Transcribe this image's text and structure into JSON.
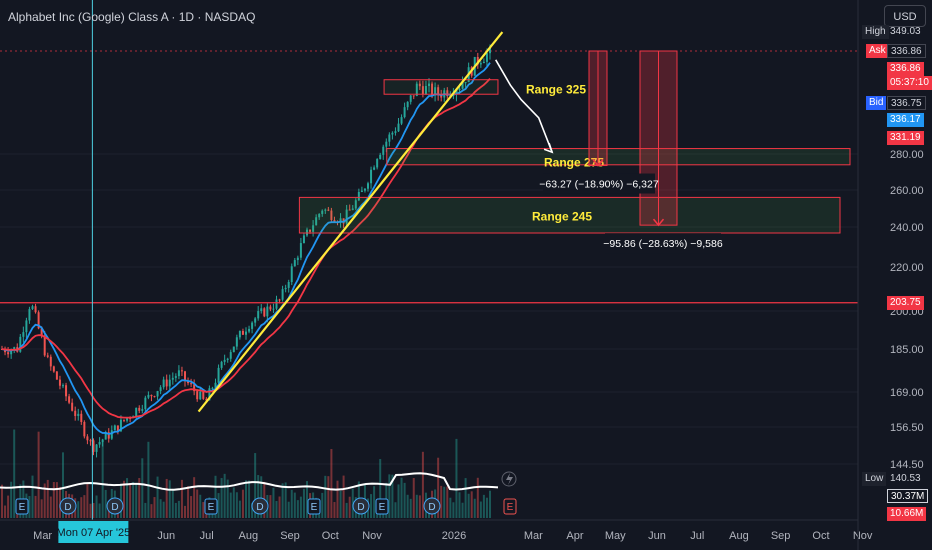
{
  "header": {
    "title": "Alphabet Inc (Google) Class A · 1D · NASDAQ",
    "currency": "USD"
  },
  "chart_data": {
    "type": "candlestick",
    "x_ticks": [
      "Mar",
      "Apr",
      "May",
      "Jun",
      "Jul",
      "Aug",
      "Sep",
      "Oct",
      "Nov",
      "2026",
      "Mar",
      "Apr",
      "May",
      "Jun",
      "Jul",
      "Aug",
      "Sep",
      "Oct",
      "Nov"
    ],
    "x_ticks_hidden": [
      "Apr",
      "May"
    ],
    "y_ticks": [
      280.0,
      260.0,
      240.0,
      220.0,
      200.0,
      185.0,
      169.0,
      156.5,
      144.5
    ],
    "y_tick_labels": [
      "280.00",
      "260.00",
      "240.00",
      "220.00",
      "200.00",
      "185.00",
      "169.00",
      "156.50",
      "144.50"
    ],
    "crosshair_label": "Mon 07 Apr '25",
    "price_path": [
      {
        "date": "2025-02-10",
        "price": 185
      },
      {
        "date": "2025-02-20",
        "price": 204
      },
      {
        "date": "2025-03-05",
        "price": 180
      },
      {
        "date": "2025-03-20",
        "price": 166
      },
      {
        "date": "2025-04-07",
        "price": 150
      },
      {
        "date": "2025-04-22",
        "price": 155
      },
      {
        "date": "2025-05-10",
        "price": 163
      },
      {
        "date": "2025-05-25",
        "price": 170
      },
      {
        "date": "2025-06-10",
        "price": 176
      },
      {
        "date": "2025-06-30",
        "price": 165
      },
      {
        "date": "2025-07-15",
        "price": 182
      },
      {
        "date": "2025-08-01",
        "price": 195
      },
      {
        "date": "2025-08-25",
        "price": 205
      },
      {
        "date": "2025-09-10",
        "price": 232
      },
      {
        "date": "2025-09-25",
        "price": 250
      },
      {
        "date": "2025-10-10",
        "price": 243
      },
      {
        "date": "2025-10-25",
        "price": 259
      },
      {
        "date": "2025-11-05",
        "price": 280
      },
      {
        "date": "2025-11-20",
        "price": 296
      },
      {
        "date": "2025-12-05",
        "price": 318
      },
      {
        "date": "2025-12-20",
        "price": 313
      },
      {
        "date": "2026-01-05",
        "price": 318
      },
      {
        "date": "2026-01-20",
        "price": 333
      },
      {
        "date": "2026-01-30",
        "price": 336.86
      }
    ],
    "trendline": {
      "from": {
        "date": "2025-06-25",
        "price": 162
      },
      "to": {
        "date": "2026-02-06",
        "price": 349
      }
    },
    "zones": [
      {
        "label": "Range 325",
        "top": 321,
        "bottom": 313
      },
      {
        "label": "Range 275",
        "top": 283,
        "bottom": 274
      },
      {
        "label": "Range 245",
        "top": 256,
        "bottom": 237
      }
    ],
    "projection_path": [
      {
        "date": "2026-02-01",
        "price": 332
      },
      {
        "date": "2026-02-12",
        "price": 318
      },
      {
        "date": "2026-02-20",
        "price": 310
      },
      {
        "date": "2026-03-05",
        "price": 300
      },
      {
        "date": "2026-03-15",
        "price": 281
      }
    ],
    "measurements": [
      {
        "label": "−63.27 (−18.90%) −6,327",
        "from_price": 336.86,
        "to_price": 273.6
      },
      {
        "label": "−95.86 (−28.63%) −9,586",
        "from_price": 336.86,
        "to_price": 241.0
      }
    ],
    "horizontal_level": 203.75,
    "volume_stats": [
      "30.37M",
      "10.66M"
    ],
    "event_markers": [
      "E",
      "D",
      "D",
      "E",
      "D",
      "E",
      "D",
      "E",
      "D",
      "E"
    ]
  },
  "price_scale": {
    "high_label": "High",
    "high_value": "349.03",
    "ask_label": "Ask",
    "ask_value": "336.86",
    "last_price": "336.86",
    "countdown": "05:37:10",
    "bid_label": "Bid",
    "bid_value": "336.75",
    "ema_fast_value": "336.17",
    "ema_slow_value": "331.19",
    "level_value": "203.75",
    "low_label": "Low",
    "low_value": "140.53"
  },
  "colors": {
    "background": "#131722",
    "up": "#26a69a",
    "down": "#ef5350",
    "ema_fast": "#2196f3",
    "ema_slow": "#f23645",
    "trendline": "#ffeb3b",
    "zone_label": "#ffeb3b",
    "level": "#f23645",
    "crosshair": "#4dd0e1"
  }
}
